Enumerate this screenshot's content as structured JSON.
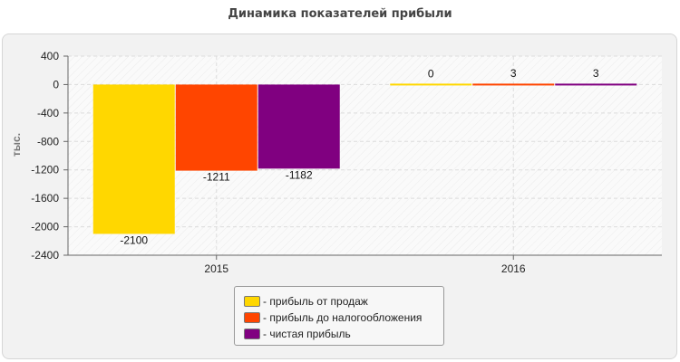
{
  "chart_data": {
    "type": "bar",
    "title": "Динамика показателей прибыли",
    "ylabel": "тыс.",
    "xlabel": "",
    "categories": [
      "2015",
      "2016"
    ],
    "ylim": [
      -2400,
      400
    ],
    "yticks": [
      400,
      0,
      -400,
      -800,
      -1200,
      -1600,
      -2000,
      -2400
    ],
    "grid": true,
    "legend_position": "bottom",
    "series": [
      {
        "name": "прибыль от продаж",
        "color": "#FFD700",
        "values": [
          -2100,
          0
        ]
      },
      {
        "name": "прибыль до налогообложения",
        "color": "#FF4500",
        "values": [
          -1211,
          3
        ]
      },
      {
        "name": "чистая прибыль",
        "color": "#800080",
        "values": [
          -1182,
          3
        ]
      }
    ]
  },
  "legend": {
    "items": [
      {
        "label": "- прибыль от продаж",
        "color": "#FFD700"
      },
      {
        "label": "- прибыль до налогообложения",
        "color": "#FF4500"
      },
      {
        "label": "- чистая прибыль",
        "color": "#800080"
      }
    ]
  }
}
